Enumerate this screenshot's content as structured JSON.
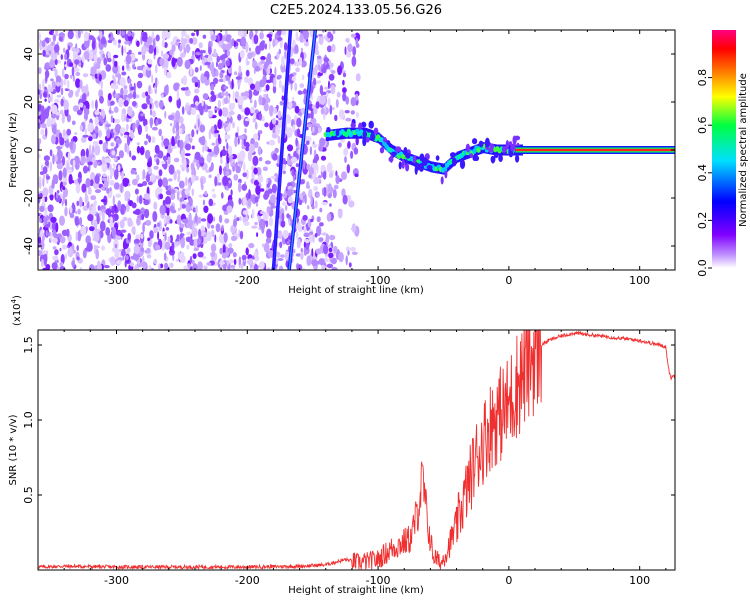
{
  "title": "C2E5.2024.133.05.56.G26",
  "chart_data": [
    {
      "type": "heatmap",
      "xlabel": "Height of straight line (km)",
      "ylabel": "Frequency (Hz)",
      "xlim": [
        -360,
        127
      ],
      "ylim": [
        -50,
        50
      ],
      "x_ticks": [
        -300,
        -200,
        -100,
        0,
        100
      ],
      "x_tick_labels": [
        "-300",
        "-200",
        "-100",
        "0",
        "100"
      ],
      "y_ticks": [
        40,
        20,
        0,
        -20,
        -40
      ],
      "y_tick_labels": [
        "40",
        "20",
        "0",
        "-20",
        "-40"
      ],
      "colorbar": {
        "label": "Normalized spectral amplitude",
        "range": [
          0,
          1
        ],
        "ticks": [
          0.0,
          0.2,
          0.4,
          0.6,
          0.8
        ],
        "tick_labels": [
          "0.0",
          "0.2",
          "0.4",
          "0.6",
          "0.8"
        ],
        "colormap": [
          "#ffffff",
          "#8000ff",
          "#0000ff",
          "#00e0ff",
          "#00ff40",
          "#ffff00",
          "#ff8000",
          "#ff0000",
          "#ff0080"
        ]
      },
      "noise_region_x": [
        -360,
        -115
      ],
      "streaks": [
        {
          "x_top": -167,
          "x_bottom": -180
        },
        {
          "x_top": -148,
          "x_bottom": -168
        }
      ],
      "signal_track": {
        "x": [
          -140,
          -125,
          -110,
          -100,
          -90,
          -80,
          -70,
          -60,
          -50,
          -40,
          -30,
          -20,
          -10,
          0,
          10
        ],
        "y": [
          6,
          7,
          7,
          5,
          0,
          -3,
          -5,
          -7,
          -8,
          -3,
          -1,
          1,
          0,
          0,
          0
        ]
      },
      "carrier_line": {
        "x_start": 5,
        "x_end": 127,
        "frequency": 0,
        "value": 1.0
      }
    },
    {
      "type": "line",
      "xlabel": "Height of straight line (km)",
      "ylabel": "SNR (10 * v/v)",
      "y_scale_label": "(x10",
      "y_scale_exponent": "4",
      "y_scale_close": ")",
      "xlim": [
        -360,
        127
      ],
      "ylim": [
        0,
        1.6
      ],
      "x_ticks": [
        -300,
        -200,
        -100,
        0,
        100
      ],
      "x_tick_labels": [
        "-300",
        "-200",
        "-100",
        "0",
        "100"
      ],
      "y_ticks": [
        0.5,
        1.0,
        1.5
      ],
      "y_tick_labels": [
        "0.5",
        "1.0",
        "1.5"
      ],
      "line_color": "#f03030",
      "series": [
        {
          "x": [
            -360,
            -340,
            -300,
            -250,
            -200,
            -160,
            -140,
            -125,
            -115,
            -100,
            -90,
            -75,
            -70,
            -66,
            -62,
            -58,
            -52,
            -45,
            -40,
            -35,
            -30,
            -25,
            -20,
            -15,
            -10,
            -5,
            0,
            5,
            10,
            15,
            20,
            25,
            30,
            40,
            50,
            60,
            70,
            80,
            90,
            100,
            110,
            115,
            120,
            122,
            124,
            127
          ],
          "y": [
            0.02,
            0.025,
            0.02,
            0.02,
            0.02,
            0.025,
            0.035,
            0.07,
            0.05,
            0.07,
            0.14,
            0.21,
            0.38,
            0.6,
            0.3,
            0.1,
            0.04,
            0.18,
            0.3,
            0.45,
            0.6,
            0.75,
            0.85,
            0.95,
            1.02,
            1.05,
            1.1,
            1.22,
            1.3,
            1.38,
            1.45,
            1.5,
            1.53,
            1.56,
            1.58,
            1.57,
            1.56,
            1.55,
            1.54,
            1.53,
            1.51,
            1.5,
            1.49,
            1.34,
            1.28,
            1.3
          ]
        }
      ]
    }
  ]
}
